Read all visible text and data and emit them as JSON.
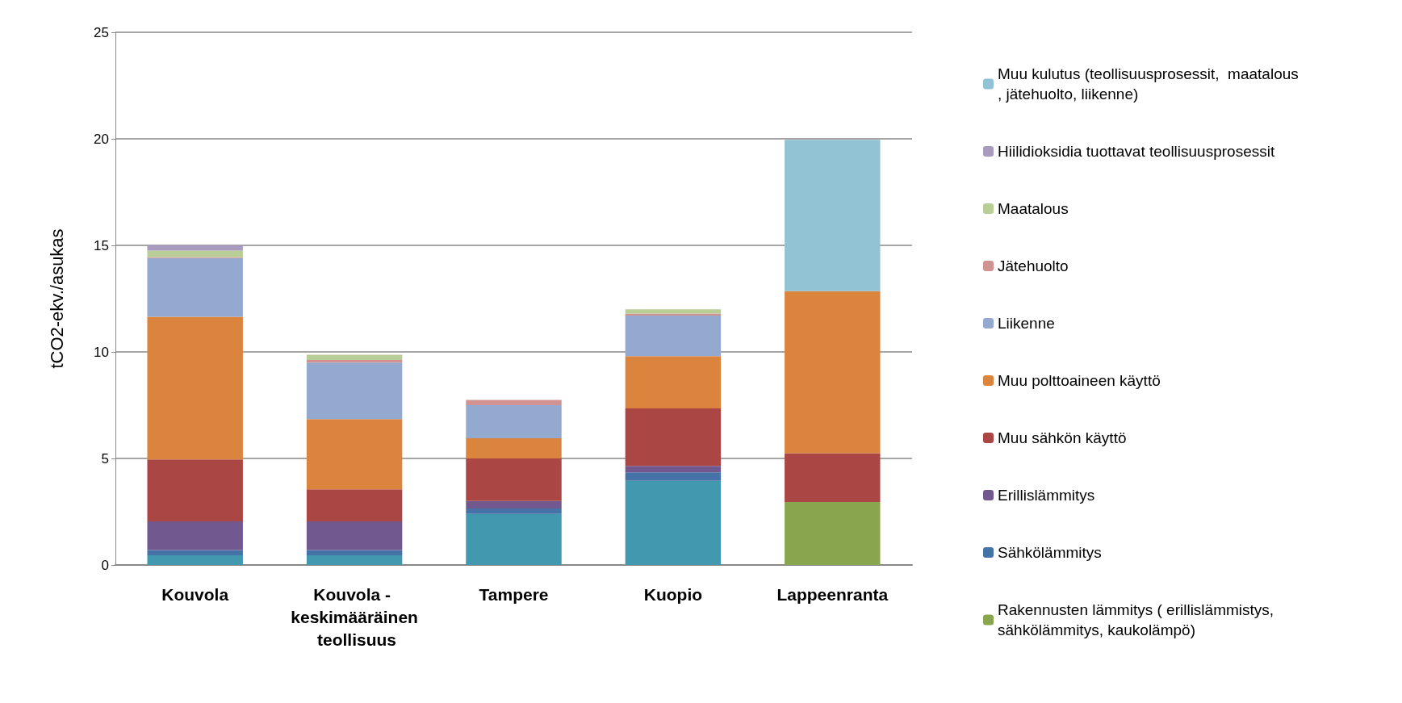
{
  "chart_data": {
    "type": "bar",
    "stacked": true,
    "ylabel": "tCO2-ekv./asukas",
    "categories": [
      "Kouvola",
      "Kouvola - keskimääräinen teollisuus",
      "Tampere",
      "Kuopio",
      "Lappeenranta"
    ],
    "series": [
      {
        "name": "Rakennusten lämmitys ( erillislämmistys, sähkölämmitys, kaukolämpö)",
        "color": "#89a54e",
        "values": [
          null,
          null,
          null,
          null,
          2.95
        ]
      },
      {
        "color": "#4198af",
        "values": [
          0.45,
          0.45,
          2.4,
          3.95,
          null
        ]
      },
      {
        "name": "Sähkölämmitys",
        "color": "#4572a7",
        "values": [
          0.25,
          0.25,
          0.25,
          0.4,
          null
        ]
      },
      {
        "name": "Erillislämmitys",
        "color": "#71588f",
        "values": [
          1.35,
          1.35,
          0.35,
          0.3,
          null
        ]
      },
      {
        "name": "Muu sähkön käyttö",
        "color": "#aa4643",
        "values": [
          2.9,
          1.5,
          2.0,
          2.7,
          2.3
        ]
      },
      {
        "name": "Muu polttoaineen käyttö",
        "color": "#db843d",
        "values": [
          6.7,
          3.3,
          0.95,
          2.45,
          7.6
        ]
      },
      {
        "name": "Liikenne",
        "color": "#93a9cf",
        "values": [
          2.75,
          2.65,
          1.55,
          1.9,
          null
        ]
      },
      {
        "name": "Jätehuolto",
        "color": "#d19392",
        "values": [
          0.05,
          0.12,
          0.25,
          0.1,
          null
        ]
      },
      {
        "name": "Maatalous",
        "color": "#b9cd96",
        "values": [
          0.3,
          0.25,
          null,
          0.2,
          null
        ]
      },
      {
        "name": "Hiilidioksidia tuottavat teollisuusprosessit",
        "color": "#a99bbd",
        "values": [
          0.27,
          null,
          null,
          null,
          null
        ]
      },
      {
        "name": "Muu kulutus (teollisuusprosessit,  maatalous, jätehuolto, liikenne)",
        "color": "#92c3d5",
        "values": [
          null,
          null,
          null,
          null,
          7.1
        ]
      }
    ],
    "ylim": [
      0,
      25
    ],
    "yticks": [
      0,
      5,
      10,
      15,
      20,
      25
    ],
    "grid": "y",
    "legend": "right"
  }
}
